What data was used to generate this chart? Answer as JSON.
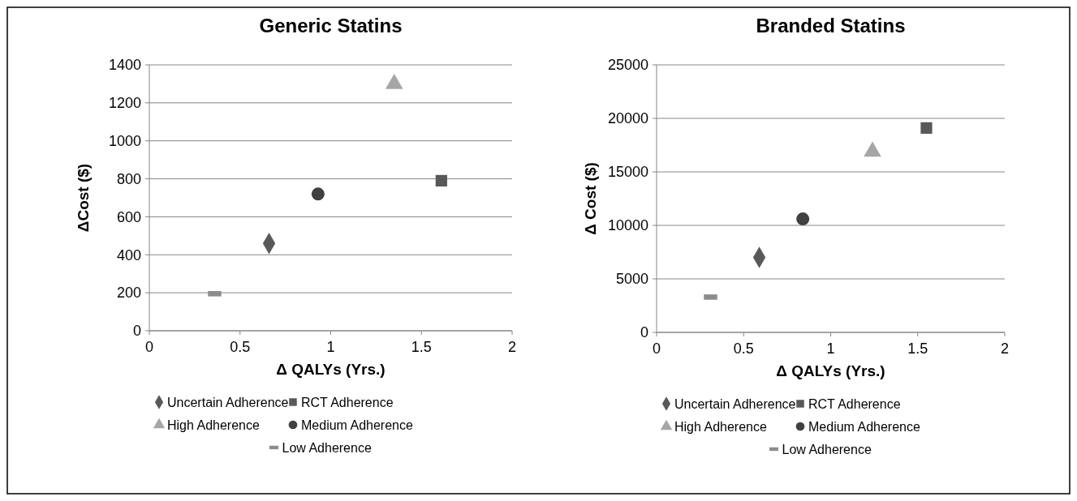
{
  "chart_data": [
    {
      "type": "scatter",
      "title": "Generic Statins",
      "xlabel": "Δ QALYs (Yrs.)",
      "ylabel": "ΔCost ($)",
      "xlim": [
        0,
        2
      ],
      "xticks": [
        0,
        0.5,
        1,
        1.5,
        2
      ],
      "ylim": [
        0,
        1400
      ],
      "yticks": [
        0,
        200,
        400,
        600,
        800,
        1000,
        1200,
        1400
      ],
      "grid": "y",
      "legend": "bottom",
      "series": [
        {
          "name": "Uncertain Adherence",
          "color": "#595959",
          "marker": "diamond",
          "x": [
            0.66
          ],
          "values": [
            460
          ]
        },
        {
          "name": "RCT Adherence",
          "color": "#595959",
          "marker": "square",
          "x": [
            1.61
          ],
          "values": [
            790
          ]
        },
        {
          "name": "High Adherence",
          "color": "#a6a6a6",
          "marker": "triangle",
          "x": [
            1.35
          ],
          "values": [
            1300
          ]
        },
        {
          "name": "Medium Adherence",
          "color": "#404040",
          "marker": "circle",
          "x": [
            0.93
          ],
          "values": [
            720
          ]
        },
        {
          "name": "Low Adherence",
          "color": "#8c8c8c",
          "x": [
            0.36
          ],
          "values": [
            195
          ]
        }
      ]
    },
    {
      "type": "scatter",
      "title": "Branded Statins",
      "xlabel": "Δ QALYs (Yrs.)",
      "ylabel": "Δ Cost ($)",
      "xlim": [
        0,
        2
      ],
      "xticks": [
        0,
        0.5,
        1,
        1.5,
        2
      ],
      "ylim": [
        0,
        25000
      ],
      "yticks": [
        0,
        5000,
        10000,
        15000,
        20000,
        25000
      ],
      "grid": "y",
      "legend": "bottom",
      "series": [
        {
          "name": "Uncertain Adherence",
          "color": "#595959",
          "marker": "diamond",
          "x": [
            0.59
          ],
          "values": [
            7000
          ]
        },
        {
          "name": "RCT Adherence",
          "color": "#595959",
          "marker": "square",
          "x": [
            1.55
          ],
          "values": [
            19100
          ]
        },
        {
          "name": "High Adherence",
          "color": "#a6a6a6",
          "marker": "triangle",
          "x": [
            1.24
          ],
          "values": [
            16900
          ]
        },
        {
          "name": "Medium Adherence",
          "color": "#404040",
          "marker": "circle",
          "x": [
            0.84
          ],
          "values": [
            10600
          ]
        },
        {
          "name": "Low Adherence",
          "color": "#8c8c8c",
          "x": [
            0.31
          ],
          "values": [
            3300
          ]
        }
      ]
    }
  ]
}
